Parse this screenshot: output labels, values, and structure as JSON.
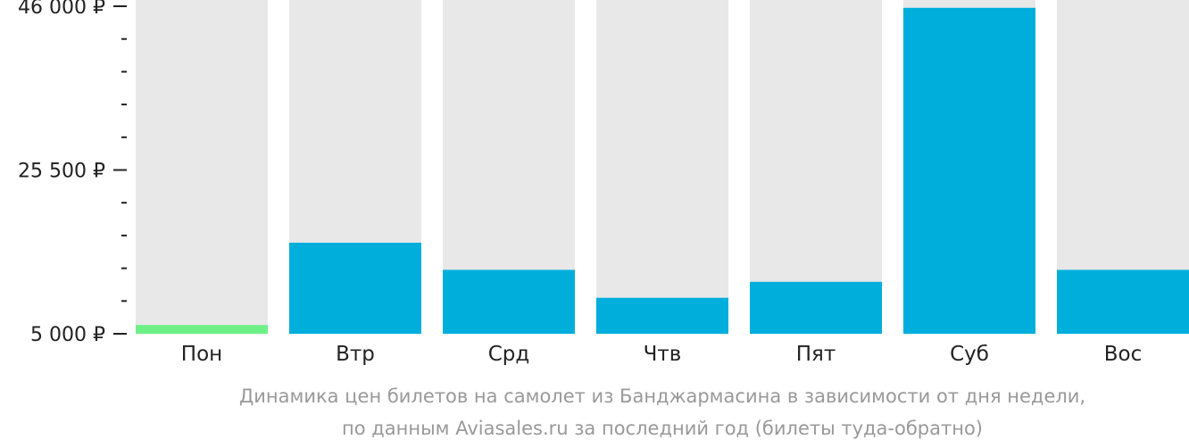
{
  "chart_data": {
    "type": "bar",
    "categories": [
      "Пон",
      "Втр",
      "Срд",
      "Чтв",
      "Пят",
      "Суб",
      "Вос"
    ],
    "values": [
      6100,
      16400,
      13000,
      9500,
      11500,
      45800,
      13000
    ],
    "ylim": [
      5000,
      46000
    ],
    "yticks_labeled": [
      {
        "value": 46000,
        "label": "46 000 ₽"
      },
      {
        "value": 25500,
        "label": "25 500 ₽"
      },
      {
        "value": 5000,
        "label": "5 000 ₽"
      }
    ],
    "minor_tick_count_between_labels": 4,
    "bar_color": "#00AEDC",
    "highlight_color": "#6EF087",
    "highlight_index": 0,
    "background_bar_color": "#E8E8E8",
    "caption": [
      "Динамика цен билетов на самолет из Банджармасина в зависимости от дня недели,",
      "по данным Aviasales.ru за последний год (билеты туда-обратно)"
    ]
  }
}
